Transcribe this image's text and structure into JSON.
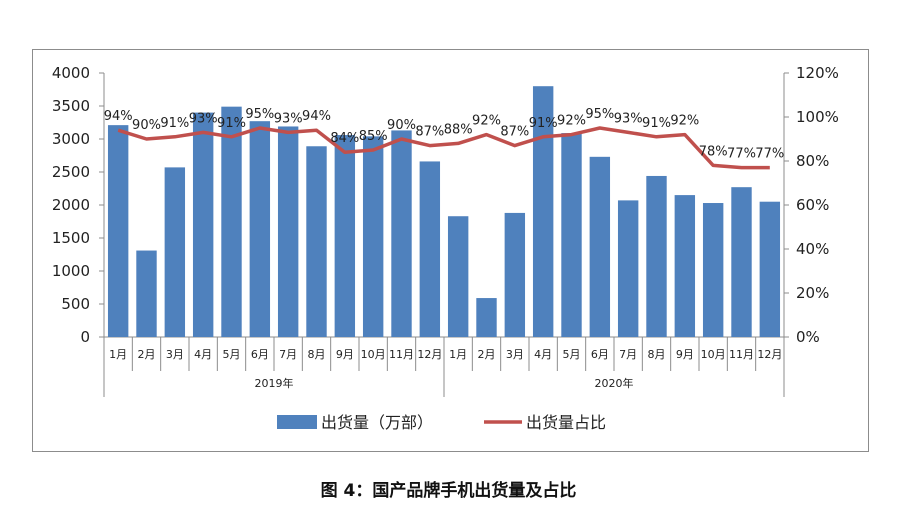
{
  "caption": "图 4：国产品牌手机出货量及占比",
  "chart_data": {
    "type": "bar",
    "groups": [
      {
        "label": "2019年",
        "categories": [
          "1月",
          "2月",
          "3月",
          "4月",
          "5月",
          "6月",
          "7月",
          "8月",
          "9月",
          "10月",
          "11月",
          "12月"
        ]
      },
      {
        "label": "2020年",
        "categories": [
          "1月",
          "2月",
          "3月",
          "4月",
          "5月",
          "6月",
          "7月",
          "8月",
          "9月",
          "10月",
          "11月",
          "12月"
        ]
      }
    ],
    "series": [
      {
        "name": "出货量（万部）",
        "type": "bar",
        "axis": "left",
        "color": "#4F81BD",
        "values": [
          3210,
          1310,
          2570,
          3400,
          3490,
          3270,
          3190,
          2890,
          3060,
          3040,
          3130,
          2660,
          1830,
          590,
          1880,
          3800,
          3090,
          2730,
          2070,
          2440,
          2150,
          2030,
          2270,
          2050
        ]
      },
      {
        "name": "出货量占比",
        "type": "line",
        "axis": "right",
        "color": "#C0504D",
        "values": [
          94,
          90,
          91,
          93,
          91,
          95,
          93,
          94,
          84,
          85,
          90,
          87,
          88,
          92,
          87,
          91,
          92,
          95,
          93,
          91,
          92,
          78,
          77,
          77
        ],
        "labels": [
          "94%",
          "90%",
          "91%",
          "93%",
          "91%",
          "95%",
          "93%",
          "94%",
          "84%",
          "85%",
          "90%",
          "87%",
          "88%",
          "92%",
          "87%",
          "91%",
          "92%",
          "95%",
          "93%",
          "91%",
          "92%",
          "78%",
          "77%",
          "77%"
        ]
      }
    ],
    "y_left": {
      "min": 0,
      "max": 4000,
      "ticks": [
        "0",
        "500",
        "1000",
        "1500",
        "2000",
        "2500",
        "3000",
        "3500",
        "4000"
      ]
    },
    "y_right": {
      "min": 0,
      "max": 120,
      "ticks": [
        "0%",
        "20%",
        "40%",
        "60%",
        "80%",
        "100%",
        "120%"
      ]
    },
    "grid": false,
    "legend_position": "bottom"
  }
}
